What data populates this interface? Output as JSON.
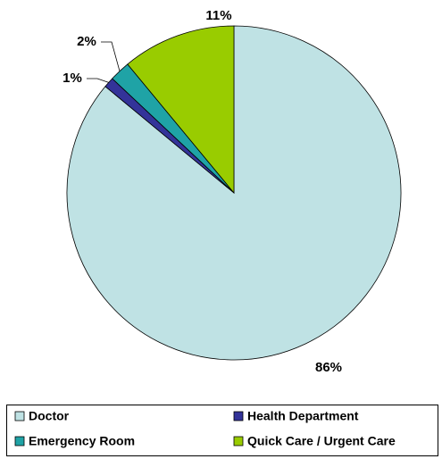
{
  "chart_data": {
    "type": "pie",
    "categories": [
      "Doctor",
      "Health Department",
      "Emergency Room",
      "Quick Care / Urgent Care"
    ],
    "values": [
      86,
      1,
      2,
      11
    ],
    "value_labels": [
      "86%",
      "1%",
      "2%",
      "11%"
    ],
    "colors": [
      "#bfe2e4",
      "#333399",
      "#1fa3a6",
      "#99cc00"
    ],
    "legend": "bottom"
  }
}
